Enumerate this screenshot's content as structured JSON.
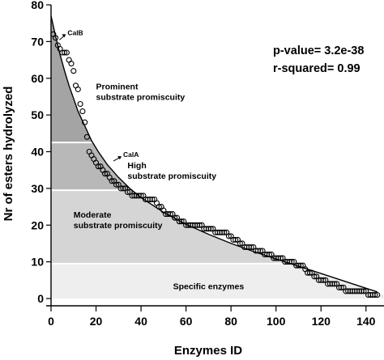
{
  "chart_data": {
    "type": "scatter",
    "title": "",
    "xlabel": "Enzymes ID",
    "ylabel": "Nr of esters hydrolyzed",
    "xlim": [
      0,
      148
    ],
    "ylim": [
      0,
      80
    ],
    "x_ticks": [
      0,
      20,
      40,
      60,
      80,
      100,
      120,
      140
    ],
    "y_ticks": [
      0,
      10,
      20,
      30,
      40,
      50,
      60,
      70,
      80
    ],
    "grid": false,
    "stats": {
      "p_value": "p-value= 3.2e-38",
      "r_squared": "r-squared= 0.99"
    },
    "regions": [
      {
        "label_lines": [
          "Specific enzymes"
        ],
        "y_from": 0,
        "y_to": 9.5,
        "color": "#eeeeee"
      },
      {
        "label_lines": [
          "Moderate",
          "substrate promiscuity"
        ],
        "y_from": 9.5,
        "y_to": 29.5,
        "color": "#d5d5d5"
      },
      {
        "label_lines": [
          "High",
          "substrate promiscuity"
        ],
        "y_from": 29.5,
        "y_to": 42.5,
        "color": "#b8b8b8"
      },
      {
        "label_lines": [
          "Prominent",
          "substrate promiscuity"
        ],
        "y_from": 42.5,
        "y_to": 80,
        "color": "#a4a4a4"
      }
    ],
    "annotations": [
      {
        "text": "CalB",
        "x": 3,
        "y": 70
      },
      {
        "text": "CalA",
        "x": 27,
        "y": 37
      }
    ],
    "series": [
      {
        "type": "points",
        "values": [
          [
            1,
            72
          ],
          [
            2,
            71
          ],
          [
            3,
            69
          ],
          [
            4,
            68
          ],
          [
            5,
            67
          ],
          [
            6,
            67
          ],
          [
            7,
            67
          ],
          [
            8,
            65
          ],
          [
            9,
            64
          ],
          [
            10,
            62
          ],
          [
            11,
            58
          ],
          [
            12,
            57
          ],
          [
            13,
            53
          ],
          [
            14,
            51
          ],
          [
            15,
            48
          ],
          [
            16,
            44
          ],
          [
            17,
            40
          ],
          [
            18,
            39
          ],
          [
            19,
            38
          ],
          [
            20,
            37
          ],
          [
            21,
            36
          ],
          [
            22,
            36
          ],
          [
            23,
            35
          ],
          [
            24,
            34
          ],
          [
            25,
            34
          ],
          [
            26,
            33
          ],
          [
            27,
            32
          ],
          [
            28,
            32
          ],
          [
            29,
            31
          ],
          [
            30,
            31
          ],
          [
            31,
            30
          ],
          [
            32,
            30
          ],
          [
            33,
            30
          ],
          [
            34,
            29
          ],
          [
            35,
            29
          ],
          [
            36,
            28
          ],
          [
            37,
            28
          ],
          [
            38,
            28
          ],
          [
            39,
            28
          ],
          [
            40,
            28
          ],
          [
            41,
            28
          ],
          [
            42,
            27
          ],
          [
            43,
            27
          ],
          [
            44,
            27
          ],
          [
            45,
            27
          ],
          [
            46,
            27
          ],
          [
            47,
            26
          ],
          [
            48,
            25
          ],
          [
            49,
            25
          ],
          [
            50,
            24
          ],
          [
            51,
            23
          ],
          [
            52,
            23
          ],
          [
            53,
            23
          ],
          [
            54,
            23
          ],
          [
            55,
            22
          ],
          [
            56,
            22
          ],
          [
            57,
            21
          ],
          [
            58,
            21
          ],
          [
            59,
            21
          ],
          [
            60,
            20
          ],
          [
            61,
            20
          ],
          [
            62,
            20
          ],
          [
            63,
            20
          ],
          [
            64,
            20
          ],
          [
            65,
            20
          ],
          [
            66,
            20
          ],
          [
            67,
            20
          ],
          [
            68,
            19
          ],
          [
            69,
            19
          ],
          [
            70,
            19
          ],
          [
            71,
            19
          ],
          [
            72,
            19
          ],
          [
            73,
            18
          ],
          [
            74,
            18
          ],
          [
            75,
            18
          ],
          [
            76,
            18
          ],
          [
            77,
            18
          ],
          [
            78,
            18
          ],
          [
            79,
            17
          ],
          [
            80,
            17
          ],
          [
            81,
            16
          ],
          [
            82,
            16
          ],
          [
            83,
            16
          ],
          [
            84,
            15
          ],
          [
            85,
            15
          ],
          [
            86,
            14
          ],
          [
            87,
            14
          ],
          [
            88,
            14
          ],
          [
            89,
            14
          ],
          [
            90,
            14
          ],
          [
            91,
            13
          ],
          [
            92,
            13
          ],
          [
            93,
            13
          ],
          [
            94,
            13
          ],
          [
            95,
            12
          ],
          [
            96,
            12
          ],
          [
            97,
            12
          ],
          [
            98,
            12
          ],
          [
            99,
            11
          ],
          [
            100,
            11
          ],
          [
            101,
            11
          ],
          [
            102,
            11
          ],
          [
            103,
            11
          ],
          [
            104,
            10
          ],
          [
            105,
            10
          ],
          [
            106,
            10
          ],
          [
            107,
            10
          ],
          [
            108,
            10
          ],
          [
            109,
            9
          ],
          [
            110,
            9
          ],
          [
            111,
            9
          ],
          [
            112,
            9
          ],
          [
            113,
            8
          ],
          [
            114,
            7
          ],
          [
            115,
            7
          ],
          [
            116,
            7
          ],
          [
            117,
            6
          ],
          [
            118,
            6
          ],
          [
            119,
            5
          ],
          [
            120,
            5
          ],
          [
            121,
            5
          ],
          [
            122,
            5
          ],
          [
            123,
            4
          ],
          [
            124,
            4
          ],
          [
            125,
            4
          ],
          [
            126,
            4
          ],
          [
            127,
            4
          ],
          [
            128,
            3
          ],
          [
            129,
            3
          ],
          [
            130,
            3
          ],
          [
            131,
            2
          ],
          [
            132,
            2
          ],
          [
            133,
            2
          ],
          [
            134,
            2
          ],
          [
            135,
            2
          ],
          [
            136,
            2
          ],
          [
            137,
            2
          ],
          [
            138,
            2
          ],
          [
            139,
            2
          ],
          [
            140,
            2
          ],
          [
            141,
            1
          ],
          [
            142,
            1
          ],
          [
            143,
            1
          ],
          [
            144,
            1
          ],
          [
            145,
            1
          ]
        ]
      },
      {
        "type": "fitted_curve",
        "values": [
          [
            0,
            77
          ],
          [
            2,
            71.5
          ],
          [
            4,
            66.5
          ],
          [
            6,
            62
          ],
          [
            8,
            58
          ],
          [
            10,
            54.5
          ],
          [
            12,
            51
          ],
          [
            15,
            47
          ],
          [
            18,
            43
          ],
          [
            21,
            40
          ],
          [
            25,
            36.5
          ],
          [
            30,
            33
          ],
          [
            35,
            30
          ],
          [
            40,
            27.5
          ],
          [
            50,
            23.5
          ],
          [
            60,
            20.2
          ],
          [
            70,
            17.5
          ],
          [
            80,
            15
          ],
          [
            90,
            12.8
          ],
          [
            100,
            10.8
          ],
          [
            110,
            8.8
          ],
          [
            120,
            6.8
          ],
          [
            130,
            4.8
          ],
          [
            140,
            2.8
          ],
          [
            145,
            1.8
          ]
        ]
      }
    ]
  }
}
